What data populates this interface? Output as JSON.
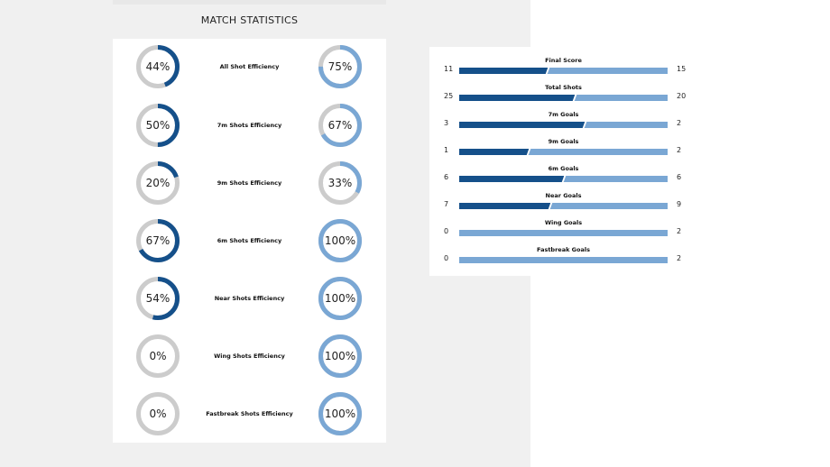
{
  "title": "MATCH STATISTICS",
  "colors": {
    "home": "#15508a",
    "away": "#7aa7d4",
    "empty": "#cccccc"
  },
  "efficiency": [
    {
      "label": "All Shot Efficiency",
      "home": 44,
      "away": 75,
      "home_text": "44%",
      "away_text": "75%"
    },
    {
      "label": "7m Shots Efficiency",
      "home": 50,
      "away": 67,
      "home_text": "50%",
      "away_text": "67%"
    },
    {
      "label": "9m Shots Efficiency",
      "home": 20,
      "away": 33,
      "home_text": "20%",
      "away_text": "33%"
    },
    {
      "label": "6m Shots Efficiency",
      "home": 67,
      "away": 100,
      "home_text": "67%",
      "away_text": "100%"
    },
    {
      "label": "Near Shots Efficiency",
      "home": 54,
      "away": 100,
      "home_text": "54%",
      "away_text": "100%"
    },
    {
      "label": "Wing Shots Efficiency",
      "home": 0,
      "away": 100,
      "home_text": "0%",
      "away_text": "100%"
    },
    {
      "label": "Fastbreak Shots Efficiency",
      "home": 0,
      "away": 100,
      "home_text": "0%",
      "away_text": "100%"
    }
  ],
  "comparison": [
    {
      "label": "Final Score",
      "home": "11",
      "away": "15"
    },
    {
      "label": "Total Shots",
      "home": "25",
      "away": "20"
    },
    {
      "label": "7m Goals",
      "home": "3",
      "away": "2"
    },
    {
      "label": "9m Goals",
      "home": "1",
      "away": "2"
    },
    {
      "label": "6m Goals",
      "home": "6",
      "away": "6"
    },
    {
      "label": "Near Goals",
      "home": "7",
      "away": "9"
    },
    {
      "label": "Wing Goals",
      "home": "0",
      "away": "2"
    },
    {
      "label": "Fastbreak Goals",
      "home": "0",
      "away": "2"
    }
  ]
}
